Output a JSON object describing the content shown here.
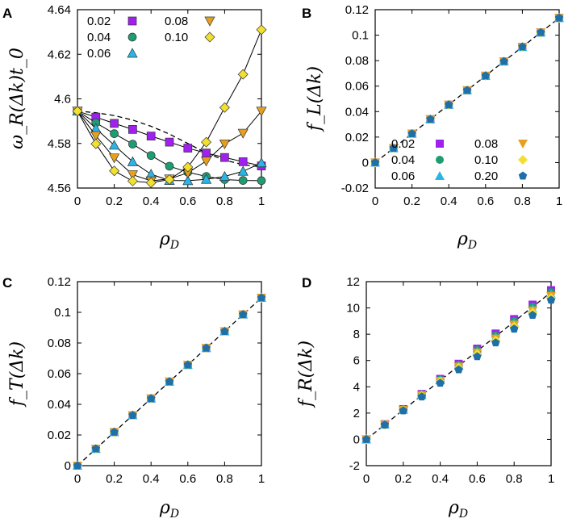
{
  "figure": {
    "colors": {
      "0.02": "#a020f0",
      "0.04": "#1e9c72",
      "0.06": "#2ab5e6",
      "0.08": "#e6a020",
      "0.10": "#f2e030",
      "0.20": "#1f6fa8"
    },
    "marker_shapes": {
      "0.02": "square",
      "0.04": "circle",
      "0.06": "triangle-up",
      "0.08": "triangle-down",
      "0.10": "diamond",
      "0.20": "pentagon"
    }
  },
  "chart_data": [
    {
      "panel": "A",
      "type": "line",
      "xlabel": "ρ",
      "xlabel_sub": "D",
      "ylabel": "ω_R(Δk)t_0",
      "xlim": [
        0,
        1
      ],
      "ylim": [
        4.56,
        4.64
      ],
      "xticks": [
        0,
        0.2,
        0.4,
        0.6,
        0.8,
        1
      ],
      "xtick_labels": [
        "0",
        "0.2",
        "0.4",
        "0.6",
        "0.8",
        "1"
      ],
      "yticks": [
        4.56,
        4.58,
        4.6,
        4.62,
        4.64
      ],
      "ytick_labels": [
        "4.56",
        "4.58",
        "4.6",
        "4.62",
        "4.64"
      ],
      "legend_position": "top-left",
      "legend_layout": [
        [
          "0.02",
          "0.08"
        ],
        [
          "0.04",
          "0.10"
        ],
        [
          "0.06"
        ]
      ],
      "reference_line": {
        "style": "dashed",
        "x": [
          0,
          0.1,
          0.2,
          0.3,
          0.4,
          0.5,
          0.6,
          0.7,
          0.8,
          0.9,
          1.0
        ],
        "y": [
          4.5945,
          4.5938,
          4.5925,
          4.5905,
          4.5877,
          4.5842,
          4.58,
          4.5757,
          4.5725,
          4.5705,
          4.5695
        ]
      },
      "series": [
        {
          "name": "0.02",
          "x": [
            0,
            0.1,
            0.2,
            0.3,
            0.4,
            0.5,
            0.6,
            0.7,
            0.8,
            0.9,
            1.0
          ],
          "y": [
            4.5945,
            4.5918,
            4.589,
            4.5863,
            4.5833,
            4.5806,
            4.5779,
            4.5757,
            4.5737,
            4.5718,
            4.5699
          ]
        },
        {
          "name": "0.04",
          "x": [
            0,
            0.1,
            0.2,
            0.3,
            0.4,
            0.5,
            0.6,
            0.7,
            0.8,
            0.9,
            1.0
          ],
          "y": [
            4.5945,
            4.5893,
            4.5844,
            4.5797,
            4.5746,
            4.5698,
            4.5671,
            4.5652,
            4.5638,
            4.5634,
            4.5633
          ]
        },
        {
          "name": "0.06",
          "x": [
            0,
            0.1,
            0.2,
            0.3,
            0.4,
            0.5,
            0.6,
            0.7,
            0.8,
            0.9,
            1.0
          ],
          "y": [
            4.5945,
            4.5867,
            4.5792,
            4.5718,
            4.5662,
            4.5634,
            4.5633,
            4.5639,
            4.5652,
            4.5675,
            4.5713
          ]
        },
        {
          "name": "0.08",
          "x": [
            0,
            0.1,
            0.2,
            0.3,
            0.4,
            0.5,
            0.6,
            0.7,
            0.8,
            0.9,
            1.0
          ],
          "y": [
            4.5945,
            4.5835,
            4.5735,
            4.566,
            4.5632,
            4.5641,
            4.5668,
            4.5721,
            4.5798,
            4.5846,
            4.5945
          ]
        },
        {
          "name": "0.10",
          "x": [
            0,
            0.1,
            0.2,
            0.3,
            0.4,
            0.5,
            0.6,
            0.7,
            0.8,
            0.9,
            1.0
          ],
          "y": [
            4.5945,
            4.5798,
            4.5677,
            4.5631,
            4.5624,
            4.5638,
            4.5694,
            4.5806,
            4.5961,
            4.611,
            4.631
          ]
        }
      ]
    },
    {
      "panel": "B",
      "type": "scatter",
      "xlabel": "ρ",
      "xlabel_sub": "D",
      "ylabel": "f_L(Δk)",
      "xlim": [
        0,
        1
      ],
      "ylim": [
        -0.02,
        0.12
      ],
      "xticks": [
        0,
        0.2,
        0.4,
        0.6,
        0.8,
        1
      ],
      "xtick_labels": [
        "0",
        "0.2",
        "0.4",
        "0.6",
        "0.8",
        "1"
      ],
      "yticks": [
        -0.02,
        0,
        0.02,
        0.04,
        0.06,
        0.08,
        0.1,
        0.12
      ],
      "ytick_labels": [
        "-0.02",
        "0",
        "0.02",
        "0.04",
        "0.06",
        "0.08",
        "0.1",
        "0.12"
      ],
      "legend_position": "bottom-right",
      "legend_layout": [
        [
          "0.02",
          "0.08"
        ],
        [
          "0.04",
          "0.10"
        ],
        [
          "0.06",
          "0.20"
        ]
      ],
      "reference_line": {
        "style": "dashed",
        "x": [
          0,
          1
        ],
        "y": [
          0,
          0.1135
        ]
      },
      "series": [
        {
          "name": "0.02",
          "x": [
            0,
            0.1,
            0.2,
            0.3,
            0.4,
            0.5,
            0.6,
            0.7,
            0.8,
            0.9,
            1.0
          ],
          "y": [
            0,
            0.0113,
            0.0227,
            0.034,
            0.0454,
            0.0567,
            0.0681,
            0.0794,
            0.0908,
            0.1021,
            0.1135
          ]
        },
        {
          "name": "0.04",
          "x": [
            0,
            0.1,
            0.2,
            0.3,
            0.4,
            0.5,
            0.6,
            0.7,
            0.8,
            0.9,
            1.0
          ],
          "y": [
            0,
            0.0113,
            0.0227,
            0.034,
            0.0454,
            0.0567,
            0.0681,
            0.0794,
            0.0908,
            0.1021,
            0.1135
          ]
        },
        {
          "name": "0.06",
          "x": [
            0,
            0.1,
            0.2,
            0.3,
            0.4,
            0.5,
            0.6,
            0.7,
            0.8,
            0.9,
            1.0
          ],
          "y": [
            0,
            0.0113,
            0.0227,
            0.034,
            0.0454,
            0.0567,
            0.0681,
            0.0794,
            0.0908,
            0.1021,
            0.1135
          ]
        },
        {
          "name": "0.08",
          "x": [
            0,
            0.1,
            0.2,
            0.3,
            0.4,
            0.5,
            0.6,
            0.7,
            0.8,
            0.9,
            1.0
          ],
          "y": [
            0,
            0.0113,
            0.0227,
            0.034,
            0.0454,
            0.0567,
            0.0681,
            0.0794,
            0.0908,
            0.1021,
            0.1135
          ]
        },
        {
          "name": "0.10",
          "x": [
            0,
            0.1,
            0.2,
            0.3,
            0.4,
            0.5,
            0.6,
            0.7,
            0.8,
            0.9,
            1.0
          ],
          "y": [
            0,
            0.0113,
            0.0227,
            0.034,
            0.0454,
            0.0567,
            0.0681,
            0.0794,
            0.0908,
            0.1021,
            0.1135
          ]
        },
        {
          "name": "0.20",
          "x": [
            0,
            0.1,
            0.2,
            0.3,
            0.4,
            0.5,
            0.6,
            0.7,
            0.8,
            0.9,
            1.0
          ],
          "y": [
            0,
            0.0113,
            0.0227,
            0.034,
            0.0454,
            0.0567,
            0.0681,
            0.0794,
            0.0908,
            0.1021,
            0.1135
          ]
        }
      ]
    },
    {
      "panel": "C",
      "type": "scatter",
      "xlabel": "ρ",
      "xlabel_sub": "D",
      "ylabel": "f_T(Δk)",
      "xlim": [
        0,
        1
      ],
      "ylim": [
        0,
        0.12
      ],
      "xticks": [
        0,
        0.2,
        0.4,
        0.6,
        0.8,
        1
      ],
      "xtick_labels": [
        "0",
        "0.2",
        "0.4",
        "0.6",
        "0.8",
        "1"
      ],
      "yticks": [
        0,
        0.02,
        0.04,
        0.06,
        0.08,
        0.1,
        0.12
      ],
      "ytick_labels": [
        "0",
        "0.02",
        "0.04",
        "0.06",
        "0.08",
        "0.1",
        "0.12"
      ],
      "reference_line": {
        "style": "dashed",
        "x": [
          0,
          1
        ],
        "y": [
          0,
          0.1095
        ]
      },
      "series": [
        {
          "name": "0.02",
          "x": [
            0,
            0.1,
            0.2,
            0.3,
            0.4,
            0.5,
            0.6,
            0.7,
            0.8,
            0.9,
            1.0
          ],
          "y": [
            0,
            0.011,
            0.0219,
            0.0329,
            0.0438,
            0.0548,
            0.0657,
            0.0767,
            0.0876,
            0.0986,
            0.1095
          ]
        },
        {
          "name": "0.04",
          "x": [
            0,
            0.1,
            0.2,
            0.3,
            0.4,
            0.5,
            0.6,
            0.7,
            0.8,
            0.9,
            1.0
          ],
          "y": [
            0,
            0.011,
            0.0219,
            0.0329,
            0.0438,
            0.0548,
            0.0657,
            0.0767,
            0.0876,
            0.0986,
            0.1095
          ]
        },
        {
          "name": "0.06",
          "x": [
            0,
            0.1,
            0.2,
            0.3,
            0.4,
            0.5,
            0.6,
            0.7,
            0.8,
            0.9,
            1.0
          ],
          "y": [
            0,
            0.011,
            0.0219,
            0.0329,
            0.0438,
            0.0548,
            0.0657,
            0.0767,
            0.0876,
            0.0986,
            0.1095
          ]
        },
        {
          "name": "0.08",
          "x": [
            0,
            0.1,
            0.2,
            0.3,
            0.4,
            0.5,
            0.6,
            0.7,
            0.8,
            0.9,
            1.0
          ],
          "y": [
            0,
            0.011,
            0.0219,
            0.0329,
            0.0438,
            0.0548,
            0.0657,
            0.0767,
            0.0876,
            0.0986,
            0.1095
          ]
        },
        {
          "name": "0.10",
          "x": [
            0,
            0.1,
            0.2,
            0.3,
            0.4,
            0.5,
            0.6,
            0.7,
            0.8,
            0.9,
            1.0
          ],
          "y": [
            0,
            0.011,
            0.0219,
            0.0329,
            0.0438,
            0.0548,
            0.0657,
            0.0767,
            0.0876,
            0.0986,
            0.1095
          ]
        },
        {
          "name": "0.20",
          "x": [
            0,
            0.1,
            0.2,
            0.3,
            0.4,
            0.5,
            0.6,
            0.7,
            0.8,
            0.9,
            1.0
          ],
          "y": [
            0,
            0.011,
            0.0219,
            0.0329,
            0.0438,
            0.0548,
            0.0657,
            0.0767,
            0.0876,
            0.0986,
            0.1095
          ]
        }
      ]
    },
    {
      "panel": "D",
      "type": "scatter",
      "xlabel": "ρ",
      "xlabel_sub": "D",
      "ylabel": "f_R(Δk)",
      "xlim": [
        0,
        1
      ],
      "ylim": [
        -2,
        12
      ],
      "xticks": [
        0,
        0.2,
        0.4,
        0.6,
        0.8,
        1
      ],
      "xtick_labels": [
        "0",
        "0.2",
        "0.4",
        "0.6",
        "0.8",
        "1"
      ],
      "yticks": [
        -2,
        0,
        2,
        4,
        6,
        8,
        10,
        12
      ],
      "ytick_labels": [
        "-2",
        "0",
        "2",
        "4",
        "6",
        "8",
        "10",
        "12"
      ],
      "reference_line": {
        "style": "dashed",
        "x": [
          0,
          1
        ],
        "y": [
          0,
          11.2
        ]
      },
      "series": [
        {
          "name": "0.02",
          "x": [
            0,
            0.1,
            0.2,
            0.3,
            0.4,
            0.5,
            0.6,
            0.7,
            0.8,
            0.9,
            1.0
          ],
          "y": [
            0,
            1.15,
            2.3,
            3.45,
            4.6,
            5.75,
            6.9,
            8.05,
            9.15,
            10.25,
            11.35
          ]
        },
        {
          "name": "0.04",
          "x": [
            0,
            0.1,
            0.2,
            0.3,
            0.4,
            0.5,
            0.6,
            0.7,
            0.8,
            0.9,
            1.0
          ],
          "y": [
            0,
            1.14,
            2.28,
            3.41,
            4.55,
            5.67,
            6.8,
            7.9,
            9.0,
            10.1,
            11.2
          ]
        },
        {
          "name": "0.06",
          "x": [
            0,
            0.1,
            0.2,
            0.3,
            0.4,
            0.5,
            0.6,
            0.7,
            0.8,
            0.9,
            1.0
          ],
          "y": [
            0,
            1.13,
            2.26,
            3.38,
            4.5,
            5.6,
            6.7,
            7.78,
            8.86,
            9.94,
            11.05
          ]
        },
        {
          "name": "0.08",
          "x": [
            0,
            0.1,
            0.2,
            0.3,
            0.4,
            0.5,
            0.6,
            0.7,
            0.8,
            0.9,
            1.0
          ],
          "y": [
            0,
            1.12,
            2.24,
            3.35,
            4.45,
            5.53,
            6.6,
            7.66,
            8.72,
            9.8,
            10.9
          ]
        },
        {
          "name": "0.10",
          "x": [
            0,
            0.1,
            0.2,
            0.3,
            0.4,
            0.5,
            0.6,
            0.7,
            0.8,
            0.9,
            1.0
          ],
          "y": [
            0,
            1.11,
            2.22,
            3.31,
            4.39,
            5.45,
            6.5,
            7.53,
            8.58,
            9.66,
            10.75
          ]
        },
        {
          "name": "0.20",
          "x": [
            0,
            0.1,
            0.2,
            0.3,
            0.4,
            0.5,
            0.6,
            0.7,
            0.8,
            0.9,
            1.0
          ],
          "y": [
            0,
            1.1,
            2.18,
            3.24,
            4.28,
            5.3,
            6.3,
            7.35,
            8.4,
            9.45,
            10.6
          ]
        }
      ]
    }
  ]
}
